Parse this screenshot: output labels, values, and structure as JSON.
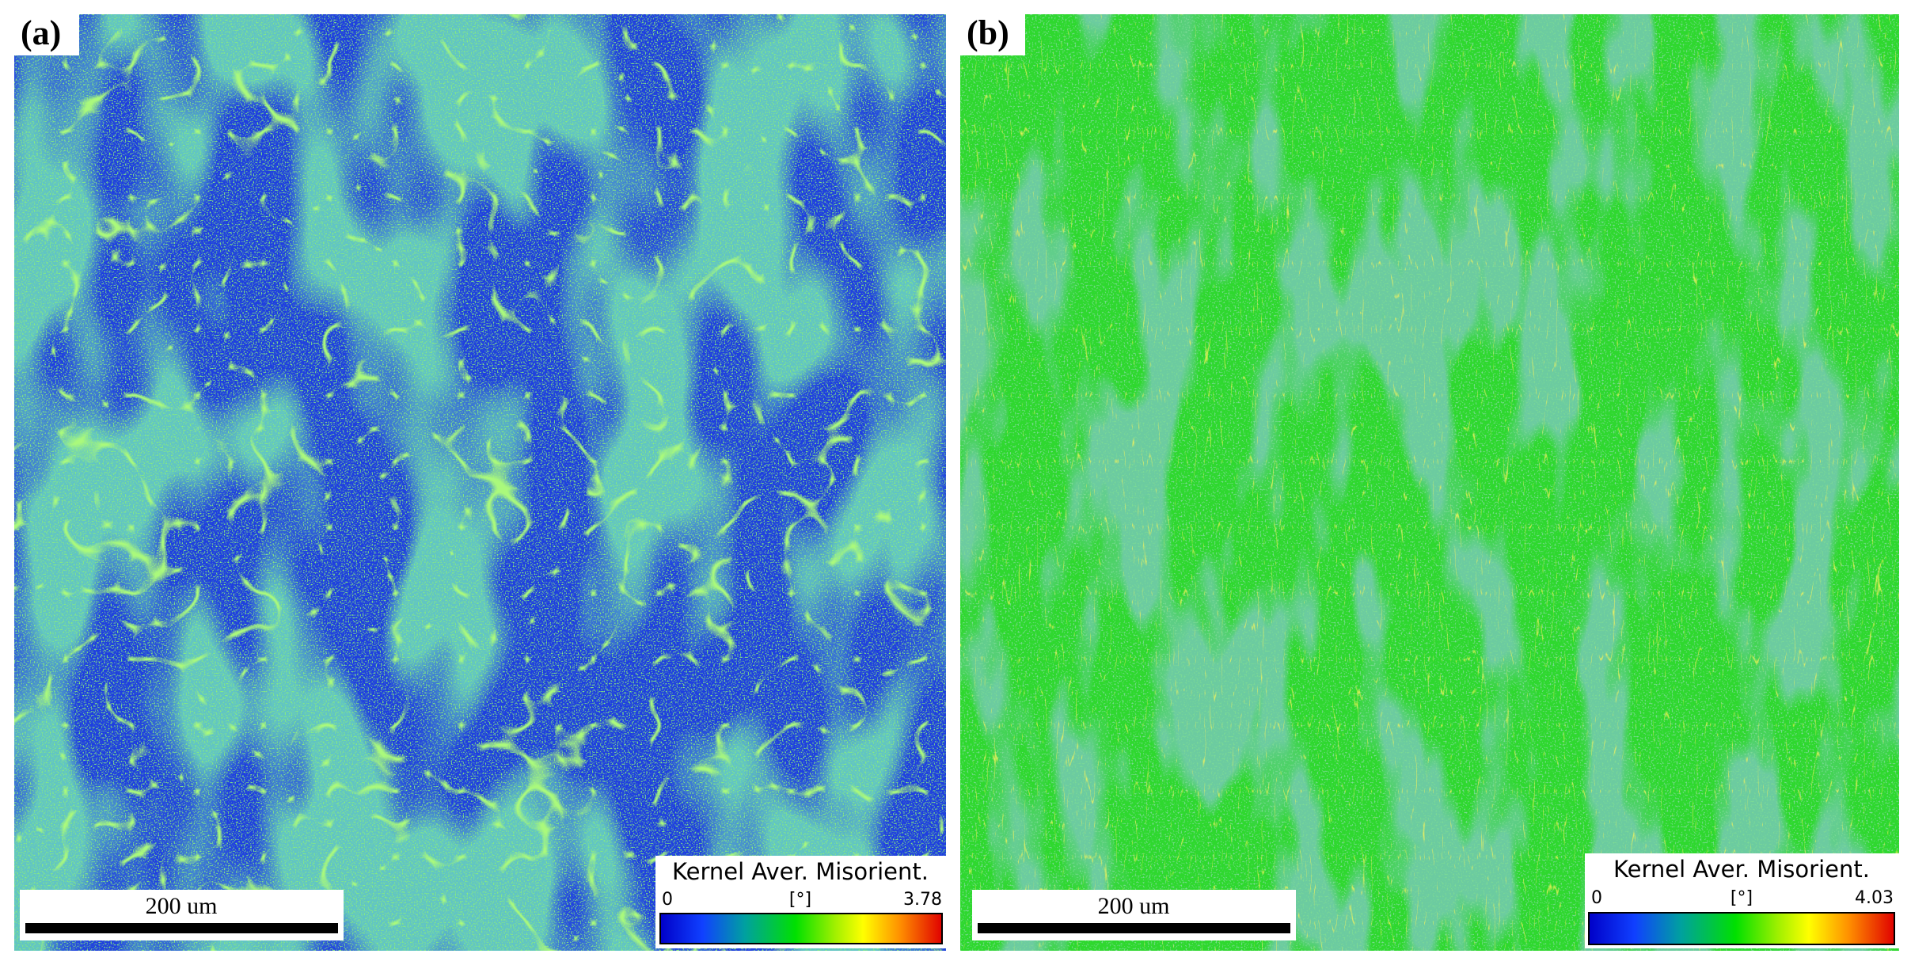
{
  "panels": [
    {
      "label": "(a)",
      "scale_bar": "200 um",
      "legend": {
        "title": "Kernel Aver. Misorient.",
        "min": 0,
        "unit": "[°]",
        "max": 3.78
      }
    },
    {
      "label": "(b)",
      "scale_bar": "200 um",
      "legend": {
        "title": "Kernel Aver. Misorient.",
        "min": 0,
        "unit": "[°]",
        "max": 4.03
      }
    }
  ]
}
